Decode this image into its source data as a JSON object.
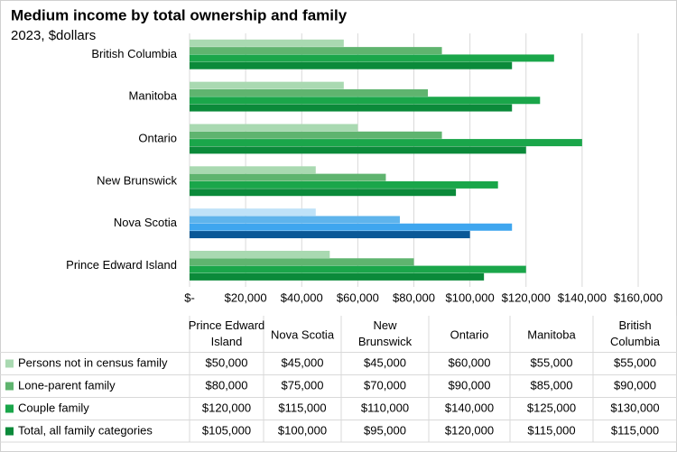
{
  "chart_data": {
    "type": "bar",
    "orientation": "horizontal",
    "title": "Medium income by total ownership and family",
    "subtitle": "2023, $dollars",
    "categories": [
      "Prince Edward Island",
      "Nova Scotia",
      "New Brunswick",
      "Ontario",
      "Manitoba",
      "British Columbia"
    ],
    "series": [
      {
        "name": "Persons not in census family",
        "color": "#a9d9b1",
        "colors": [
          "#a9d9b1",
          "#bfe2f8",
          "#a9d9b1",
          "#a9d9b1",
          "#a9d9b1",
          "#a9d9b1"
        ],
        "values": [
          50000,
          45000,
          45000,
          60000,
          55000,
          55000
        ],
        "value_labels": [
          "$50,000",
          "$45,000",
          "$45,000",
          "$60,000",
          "$55,000",
          "$55,000"
        ]
      },
      {
        "name": "Lone-parent family",
        "color": "#5fb46f",
        "colors": [
          "#5fb46f",
          "#5fb4ec",
          "#5fb46f",
          "#5fb46f",
          "#5fb46f",
          "#5fb46f"
        ],
        "values": [
          80000,
          75000,
          70000,
          90000,
          85000,
          90000
        ],
        "value_labels": [
          "$80,000",
          "$75,000",
          "$70,000",
          "$90,000",
          "$85,000",
          "$90,000"
        ]
      },
      {
        "name": "Couple family",
        "color": "#1aa64a",
        "colors": [
          "#1aa64a",
          "#3fa6ef",
          "#1aa64a",
          "#1aa64a",
          "#1aa64a",
          "#1aa64a"
        ],
        "values": [
          120000,
          115000,
          110000,
          140000,
          125000,
          130000
        ],
        "value_labels": [
          "$120,000",
          "$115,000",
          "$110,000",
          "$140,000",
          "$125,000",
          "$130,000"
        ]
      },
      {
        "name": "Total, all family categories",
        "color": "#0b8a3a",
        "colors": [
          "#0b8a3a",
          "#0a5897",
          "#0b8a3a",
          "#0b8a3a",
          "#0b8a3a",
          "#0b8a3a"
        ],
        "values": [
          105000,
          100000,
          95000,
          120000,
          115000,
          115000
        ],
        "value_labels": [
          "$105,000",
          "$100,000",
          "$95,000",
          "$120,000",
          "$115,000",
          "$115,000"
        ]
      }
    ],
    "xlim": [
      0,
      160000
    ],
    "xticks": [
      {
        "value": 0,
        "label": "$-"
      },
      {
        "value": 20000,
        "label": "$20,000"
      },
      {
        "value": 40000,
        "label": "$40,000"
      },
      {
        "value": 60000,
        "label": "$60,000"
      },
      {
        "value": 80000,
        "label": "$80,000"
      },
      {
        "value": 100000,
        "label": "$100,000"
      },
      {
        "value": 120000,
        "label": "$120,000"
      },
      {
        "value": 140000,
        "label": "$140,000"
      },
      {
        "value": 160000,
        "label": "$160,000"
      }
    ],
    "grid": true
  }
}
